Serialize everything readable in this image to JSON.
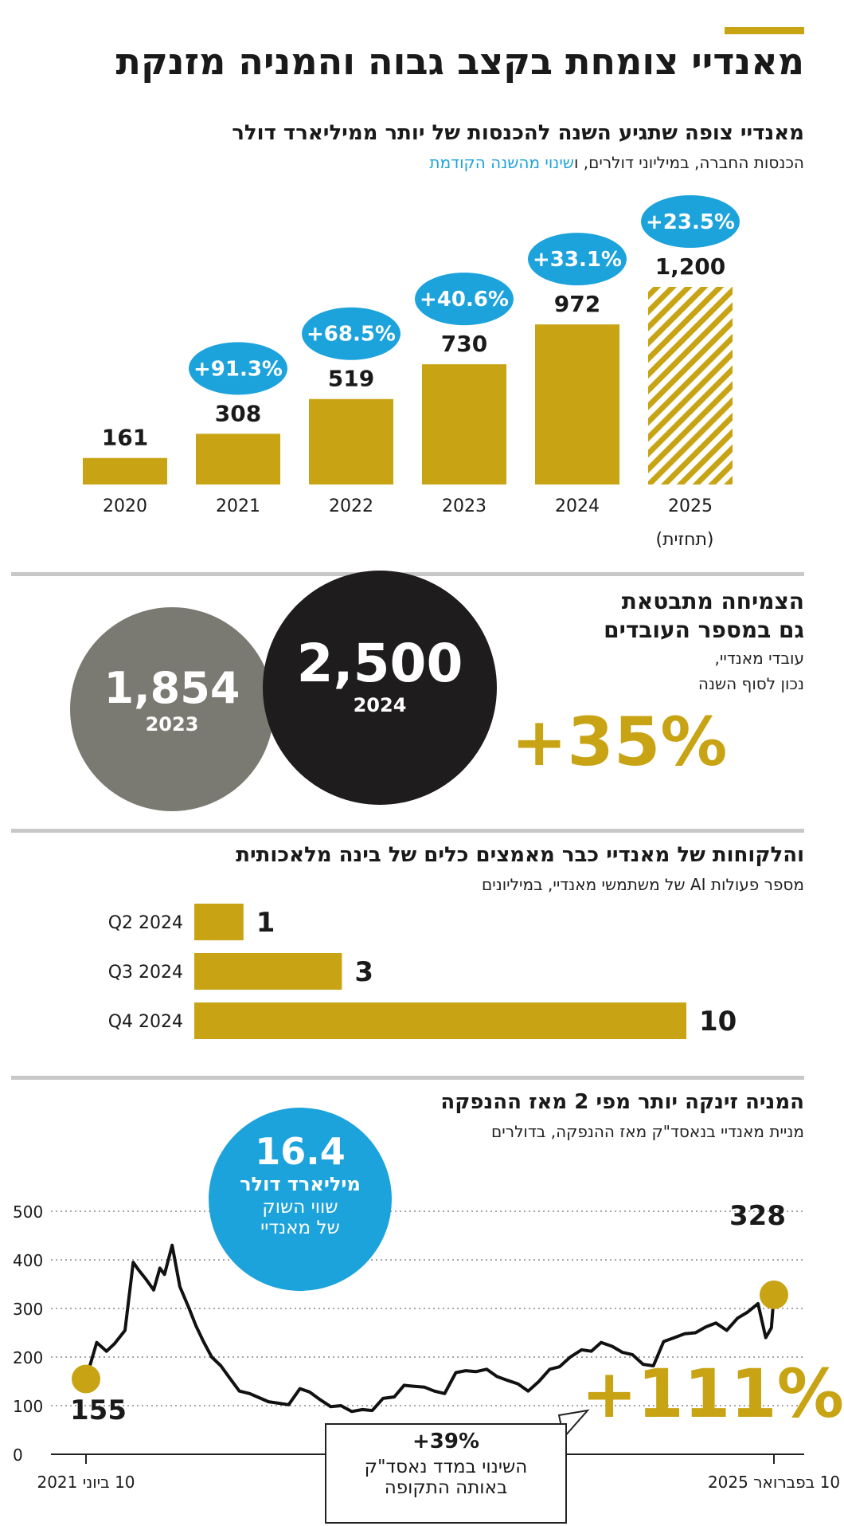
{
  "header": {
    "title": "מאנדיי צומחת בקצב גבוה והמניה מזנקת"
  },
  "revenue": {
    "title": "מאנדיי צופה שתגיע השנה להכנסות של יותר ממיליארד דולר",
    "subtitle_main": "הכנסות החברה, במיליוני דולרים, ו",
    "subtitle_highlight": "שינוי מהשנה הקודמת",
    "forecast_label": "(תחזית)"
  },
  "employees": {
    "title_line1": "הצמיחה מתבטאת",
    "title_line2": "גם במספר העובדים",
    "sub_line1": "עובדי מאנדיי,",
    "sub_line2": "נכון לסוף השנה",
    "prev_value": "1,854",
    "prev_year": "2023",
    "curr_value": "2,500",
    "curr_year": "2024",
    "growth": "+35%"
  },
  "ai": {
    "title": "והלקוחות של מאנדיי כבר מאמצים כלים של בינה מלאכותית",
    "subtitle": "מספר פעולות AI של משתמשי מאנדיי, במיליונים"
  },
  "stock": {
    "title": "המניה זינקה יותר מפי 2 מאז ההנפקה",
    "subtitle": "מניית מאנדיי בנאסד\"ק מאז ההנפקה, בדולרים",
    "market_cap_value": "16.4",
    "market_cap_unit": "מיליארד דולר",
    "market_cap_label1": "שווי השוק",
    "market_cap_label2": "של מאנדיי",
    "start_label": "155",
    "end_label": "328",
    "change": "+111%",
    "nasdaq_change": "+39%",
    "nasdaq_line1": "השינוי במדד נאסד\"ק",
    "nasdaq_line2": "באותה התקופה"
  },
  "colors": {
    "gold": "#c8a415",
    "blue": "#1ca3dc",
    "black": "#1e1c1c",
    "gray": "#7b7a72"
  },
  "chart_data": [
    {
      "type": "bar",
      "categories": [
        "2020",
        "2021",
        "2022",
        "2023",
        "2024",
        "2025"
      ],
      "values": [
        161,
        308,
        519,
        730,
        972,
        1200
      ],
      "value_labels": [
        "161",
        "308",
        "519",
        "730",
        "972",
        "1,200"
      ],
      "changes": [
        null,
        "+91.3%",
        "+68.5%",
        "+40.6%",
        "+33.1%",
        "+23.5%"
      ],
      "forecast_index": 5,
      "ylim": [
        0,
        1200
      ]
    },
    {
      "type": "bar",
      "orientation": "horizontal",
      "categories": [
        "Q2 2024",
        "Q3 2024",
        "Q4 2024"
      ],
      "values": [
        1,
        3,
        10
      ],
      "xlim": [
        0,
        10
      ]
    },
    {
      "type": "line",
      "x_tick_labels": [
        "10 ביוני 2021",
        "10 בפברואר 2025"
      ],
      "y_ticks": [
        0,
        100,
        200,
        300,
        400,
        500
      ],
      "ylim": [
        0,
        500
      ],
      "grid": "horizontal-dotted",
      "series": [
        {
          "x": [
            "2021-06-10",
            "2021-07-01",
            "2021-07-20",
            "2021-08-05",
            "2021-08-25",
            "2021-09-10",
            "2021-09-20",
            "2021-10-05",
            "2021-10-20",
            "2021-11-01",
            "2021-11-10",
            "2021-11-25",
            "2021-12-10",
            "2021-12-28",
            "2022-01-10",
            "2022-01-25",
            "2022-02-10",
            "2022-02-28",
            "2022-03-15",
            "2022-04-05",
            "2022-04-25",
            "2022-05-10",
            "2022-06-01",
            "2022-06-20",
            "2022-07-10",
            "2022-08-01",
            "2022-08-20",
            "2022-09-10",
            "2022-09-30",
            "2022-10-20",
            "2022-11-10",
            "2022-12-01",
            "2022-12-20",
            "2023-01-10",
            "2023-02-01",
            "2023-02-20",
            "2023-03-10",
            "2023-04-01",
            "2023-04-20",
            "2023-05-10",
            "2023-06-01",
            "2023-06-20",
            "2023-07-10",
            "2023-07-31",
            "2023-08-20",
            "2023-09-10",
            "2023-09-30",
            "2023-10-20",
            "2023-11-10",
            "2023-12-01",
            "2023-12-20",
            "2024-01-10",
            "2024-02-01",
            "2024-02-20",
            "2024-03-10",
            "2024-04-01",
            "2024-04-20",
            "2024-05-10",
            "2024-05-31",
            "2024-06-20",
            "2024-07-10",
            "2024-07-31",
            "2024-08-20",
            "2024-09-10",
            "2024-09-30",
            "2024-10-20",
            "2024-11-10",
            "2024-12-01",
            "2024-12-20",
            "2025-01-10",
            "2025-01-25",
            "2025-02-05",
            "2025-02-10"
          ],
          "y": [
            155,
            230,
            212,
            228,
            255,
            395,
            380,
            360,
            338,
            383,
            370,
            430,
            345,
            300,
            265,
            232,
            200,
            182,
            160,
            130,
            125,
            118,
            108,
            105,
            102,
            135,
            128,
            112,
            98,
            100,
            88,
            92,
            90,
            115,
            118,
            142,
            140,
            138,
            130,
            125,
            168,
            172,
            170,
            175,
            160,
            152,
            145,
            130,
            150,
            175,
            180,
            200,
            215,
            212,
            230,
            222,
            210,
            205,
            185,
            182,
            232,
            240,
            248,
            250,
            262,
            270,
            255,
            280,
            292,
            310,
            240,
            260,
            328
          ]
        }
      ]
    }
  ]
}
